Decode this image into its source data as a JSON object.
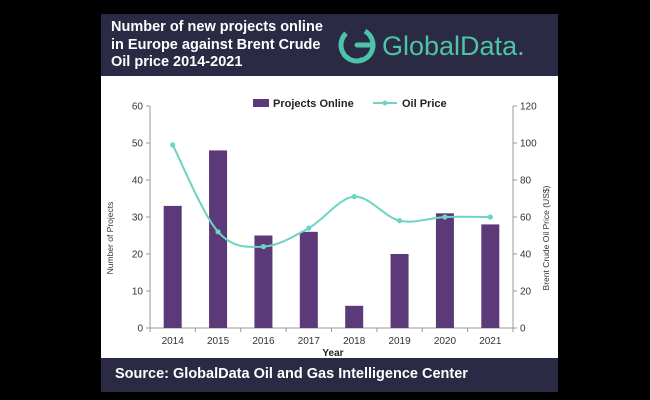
{
  "header": {
    "title_lines": [
      "Number of new projects online",
      "in Europe against Brent Crude",
      "Oil price 2014-2021"
    ]
  },
  "logo": {
    "text": "GlobalData.",
    "color": "#4dc3a8"
  },
  "footer": {
    "source": "Source: GlobalData Oil and Gas Intelligence Center"
  },
  "colors": {
    "bar": "#5c3a79",
    "line": "#6ed3c3",
    "header_bg": "#2b2a45"
  },
  "chart_data": {
    "type": "bar",
    "categories": [
      "2014",
      "2015",
      "2016",
      "2017",
      "2018",
      "2019",
      "2020",
      "2021"
    ],
    "series": [
      {
        "name": "Projects Online",
        "type": "bar",
        "axis": "left",
        "values": [
          33,
          48,
          25,
          26,
          6,
          20,
          31,
          28
        ]
      },
      {
        "name": "Oil Price",
        "type": "line",
        "axis": "right",
        "smooth": true,
        "values": [
          99,
          52,
          44,
          54,
          71,
          58,
          60,
          60
        ]
      }
    ],
    "xlabel": "Year",
    "ylabel": "Number of Projects",
    "y2label": "Brent Crude Oil Price (US$)",
    "ylim": [
      0,
      60
    ],
    "y2lim": [
      0,
      120
    ],
    "yticks": [
      0,
      10,
      20,
      30,
      40,
      50,
      60
    ],
    "y2ticks": [
      0,
      20,
      40,
      60,
      80,
      100,
      120
    ],
    "legend_position": "top",
    "grid": false
  }
}
